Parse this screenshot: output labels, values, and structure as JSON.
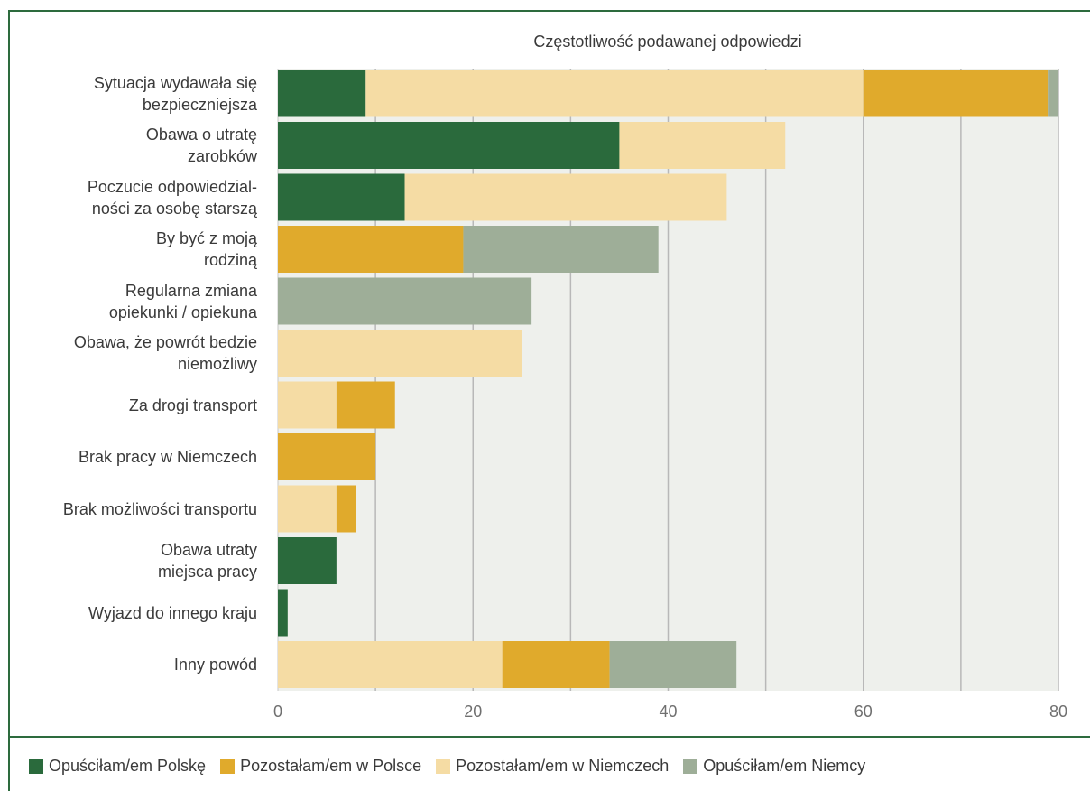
{
  "chart_data": {
    "type": "bar",
    "orientation": "horizontal",
    "stacked": true,
    "title": "Częstotliwość podawanej odpowiedzi",
    "xlabel": "",
    "ylabel": "",
    "xlim": [
      0,
      80
    ],
    "x_ticks": [
      0,
      20,
      40,
      60,
      80
    ],
    "grid": true,
    "legend_position": "bottom",
    "categories": [
      "Sytuacja wydawała się\nbezpieczniejsza",
      "Obawa o utratę\nzarobków",
      "Poczucie odpowiedzial-\nności za osobę starszą",
      "By być z moją\nrodziną",
      "Regularna zmiana\nopiekunki / opiekuna",
      "Obawa, że powrót bedzie\nniemożliwy",
      "Za drogi transport",
      "Brak pracy w Niemczech",
      "Brak możliwości transportu",
      "Obawa utraty\nmiejsca pracy",
      "Wyjazd do innego kraju",
      "Inny powód"
    ],
    "series": [
      {
        "name": "Opuściłam/em Polskę",
        "color": "#2a6a3c",
        "values": [
          9,
          35,
          13,
          0,
          0,
          0,
          0,
          0,
          0,
          6,
          1,
          0
        ]
      },
      {
        "name": "Pozostałam/em w Niemczech",
        "color": "#f5dca4",
        "values": [
          51,
          17,
          33,
          0,
          0,
          25,
          6,
          0,
          6,
          0,
          0,
          23
        ]
      },
      {
        "name": "Pozostałam/em w Polsce",
        "color": "#e0aa2c",
        "values": [
          19,
          0,
          0,
          19,
          0,
          0,
          6,
          10,
          2,
          0,
          0,
          11
        ]
      },
      {
        "name": "Opuściłam/em Niemcy",
        "color": "#9eae98",
        "values": [
          1,
          0,
          0,
          20,
          26,
          0,
          0,
          0,
          0,
          0,
          0,
          13
        ]
      }
    ],
    "legend_order": [
      "Opuściłam/em Polskę",
      "Pozostałam/em w Polsce",
      "Pozostałam/em w Niemczech",
      "Opuściłam/em Niemcy"
    ],
    "colors": {
      "plot_background": "#eef0ec",
      "grid": "#b8b8b8",
      "frame": "#2d6b3d"
    }
  }
}
